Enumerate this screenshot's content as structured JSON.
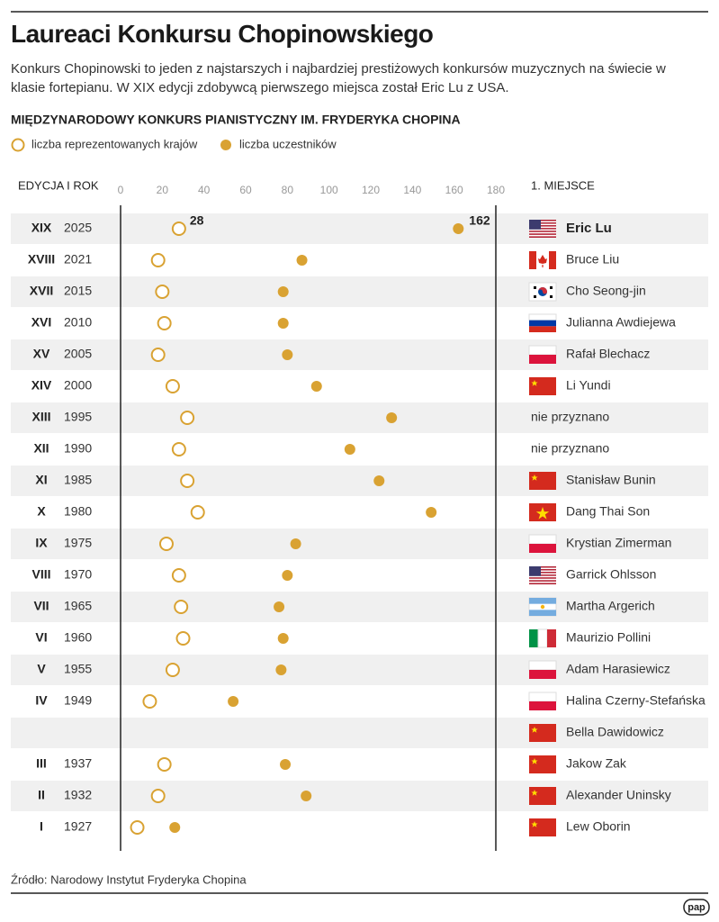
{
  "title": "Laureaci Konkursu Chopinowskiego",
  "subtitle": "Konkurs Chopinowski to jeden z najstarszych i najbardziej prestiżowych konkursów muzycznych na świecie w klasie fortepianu. W XIX edycji zdobywcą pierwszego miejsca został Eric Lu z USA.",
  "chart_data": {
    "type": "dot",
    "title": "MIĘDZYNARODOWY KONKURS PIANISTYCZNY IM. FRYDERYKA CHOPINA",
    "row_header": "EDYCJA I ROK",
    "winner_header": "1. MIEJSCE",
    "editions": [
      "XIX",
      "XVIII",
      "XVII",
      "XVI",
      "XV",
      "XIV",
      "XIII",
      "XII",
      "XI",
      "X",
      "IX",
      "VIII",
      "VII",
      "VI",
      "V",
      "IV",
      null,
      "III",
      "II",
      "I"
    ],
    "years": [
      "2025",
      "2021",
      "2015",
      "2010",
      "2005",
      "2000",
      "1995",
      "1990",
      "1985",
      "1980",
      "1975",
      "1970",
      "1965",
      "1960",
      "1955",
      "1949",
      null,
      "1937",
      "1932",
      "1927"
    ],
    "winners": [
      "Eric Lu",
      "Bruce Liu",
      "Cho Seong-jin",
      "Julianna Awdiejewa",
      "Rafał Blechacz",
      "Li Yundi",
      "nie przyznano",
      "nie przyznano",
      "Stanisław Bunin",
      "Dang Thai Son",
      "Krystian Zimerman",
      "Garrick Ohlsson",
      "Martha Argerich",
      "Maurizio Pollini",
      "Adam Harasiewicz",
      "Halina Czerny-Stefańska",
      "Bella Dawidowicz",
      "Jakow Zak",
      "Alexander Uninsky",
      "Lew Oborin"
    ],
    "series": [
      {
        "name": "liczba reprezentowanych krajów",
        "color": "#d9a232",
        "marker": "hollow",
        "values": [
          28,
          18,
          20,
          21,
          18,
          25,
          32,
          28,
          32,
          37,
          22,
          28,
          29,
          30,
          25,
          14,
          null,
          21,
          18,
          8
        ]
      },
      {
        "name": "liczba uczestników",
        "color": "#d9a232",
        "marker": "filled",
        "values": [
          162,
          87,
          78,
          78,
          80,
          94,
          130,
          110,
          124,
          149,
          84,
          80,
          76,
          78,
          77,
          54,
          null,
          79,
          89,
          26
        ]
      }
    ],
    "xlim": [
      0,
      180
    ],
    "xticks": [
      0,
      20,
      40,
      60,
      80,
      100,
      120,
      140,
      160,
      180
    ]
  },
  "source": "Źródło: Narodowy Instytut Fryderyka Chopina",
  "logo": "pap"
}
